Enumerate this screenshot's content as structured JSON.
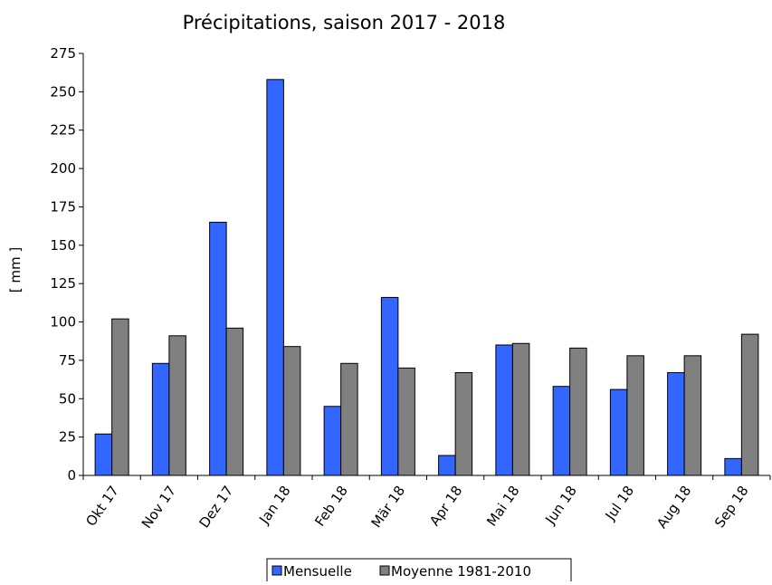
{
  "chart_data": {
    "type": "bar",
    "title": "Précipitations, saison 2017 - 2018",
    "xlabel": "",
    "ylabel": "[ mm ]",
    "ylim": [
      0,
      275
    ],
    "yticks": [
      0,
      25,
      50,
      75,
      100,
      125,
      150,
      175,
      200,
      225,
      250,
      275
    ],
    "grid": false,
    "legend_position": "bottom",
    "categories": [
      "Okt 17",
      "Nov 17",
      "Dez 17",
      "Jan 18",
      "Feb 18",
      "Mär 18",
      "Apr 18",
      "Mai 18",
      "Jun 18",
      "Jul 18",
      "Aug 18",
      "Sep 18"
    ],
    "series": [
      {
        "name": "Mensuelle",
        "color": "#3366ff",
        "values": [
          27,
          73,
          165,
          258,
          45,
          116,
          13,
          85,
          58,
          56,
          67,
          11
        ]
      },
      {
        "name": "Moyenne 1981-2010",
        "color": "#808080",
        "values": [
          102,
          91,
          96,
          84,
          73,
          70,
          67,
          86,
          83,
          78,
          78,
          92
        ]
      }
    ]
  }
}
